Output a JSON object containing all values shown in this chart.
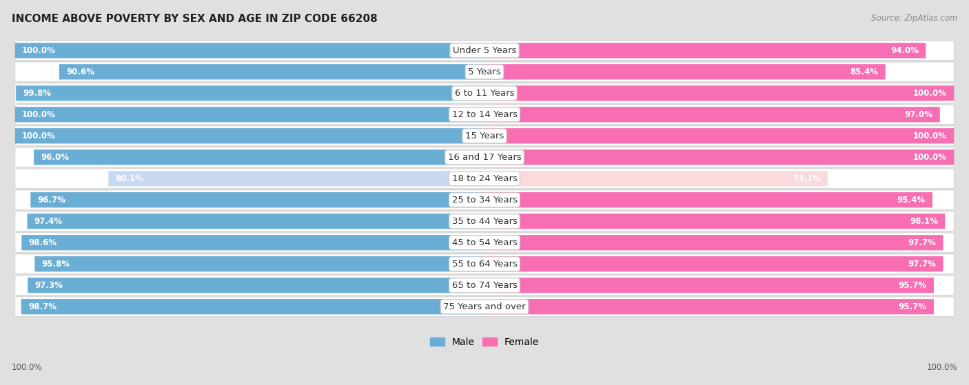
{
  "title": "INCOME ABOVE POVERTY BY SEX AND AGE IN ZIP CODE 66208",
  "source": "Source: ZipAtlas.com",
  "categories": [
    "Under 5 Years",
    "5 Years",
    "6 to 11 Years",
    "12 to 14 Years",
    "15 Years",
    "16 and 17 Years",
    "18 to 24 Years",
    "25 to 34 Years",
    "35 to 44 Years",
    "45 to 54 Years",
    "55 to 64 Years",
    "65 to 74 Years",
    "75 Years and over"
  ],
  "male_values": [
    100.0,
    90.6,
    99.8,
    100.0,
    100.0,
    96.0,
    80.1,
    96.7,
    97.4,
    98.6,
    95.8,
    97.3,
    98.7
  ],
  "female_values": [
    94.0,
    85.4,
    100.0,
    97.0,
    100.0,
    100.0,
    73.1,
    95.4,
    98.1,
    97.7,
    97.7,
    95.7,
    95.7
  ],
  "male_color": "#6aaed6",
  "female_color": "#f76eb2",
  "male_light_color": "#c6d9f1",
  "female_light_color": "#fadadd",
  "row_bg_even": "#e8e8e8",
  "row_bg_odd": "#f0f0f0",
  "background_color": "#e0e0e0",
  "title_fontsize": 11,
  "label_fontsize": 9.5,
  "value_fontsize": 8.5,
  "source_fontsize": 8.5,
  "legend_fontsize": 10
}
